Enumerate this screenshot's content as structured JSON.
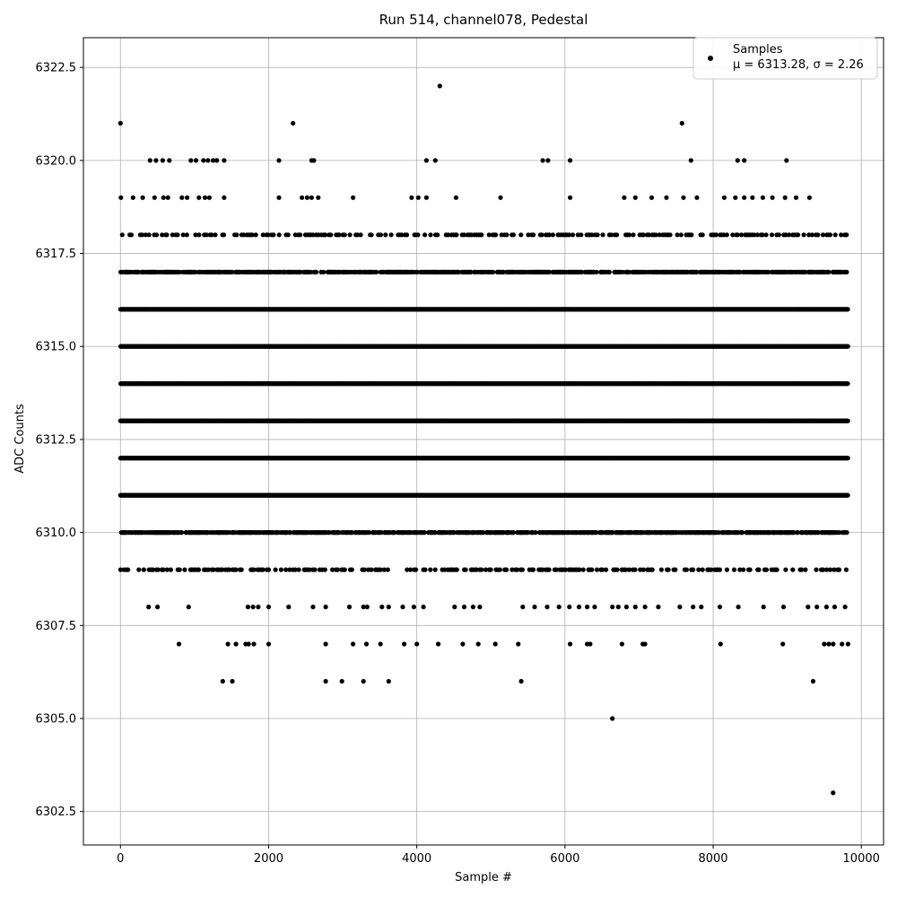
{
  "chart_data": {
    "type": "scatter",
    "title": "Run 514, channel078, Pedestal",
    "xlabel": "Sample #",
    "ylabel": "ADC Counts",
    "xlim": [
      -500,
      10300
    ],
    "ylim": [
      6301.6,
      6323.3
    ],
    "x_ticks": [
      0,
      2000,
      4000,
      6000,
      8000,
      10000
    ],
    "x_tick_labels": [
      "0",
      "2000",
      "4000",
      "6000",
      "8000",
      "10000"
    ],
    "y_ticks": [
      6302.5,
      6305.0,
      6307.5,
      6310.0,
      6312.5,
      6315.0,
      6317.5,
      6320.0,
      6322.5
    ],
    "y_tick_labels": [
      "6302.5",
      "6305.0",
      "6307.5",
      "6310.0",
      "6312.5",
      "6315.0",
      "6317.5",
      "6320.0",
      "6322.5"
    ],
    "grid": true,
    "legend_position": "upper-right",
    "marker_color": "#000000",
    "series": [
      {
        "name": "Samples",
        "legend_stats": "μ = 6313.28, σ = 2.26",
        "sample_range": [
          0,
          9820
        ],
        "dense_levels": [
          6310,
          6311,
          6312,
          6313,
          6314,
          6315,
          6316,
          6317
        ],
        "semi_dense_levels": [
          6309,
          6318
        ],
        "points": [
          [
            0,
            6321
          ],
          [
            2330,
            6321
          ],
          [
            4310,
            6322
          ],
          [
            7580,
            6321
          ],
          [
            6640,
            6305
          ],
          [
            9620,
            6303
          ],
          [
            1380,
            6306
          ],
          [
            1510,
            6306
          ],
          [
            2770,
            6306
          ],
          [
            2990,
            6306
          ],
          [
            3280,
            6306
          ],
          [
            3620,
            6306
          ],
          [
            5410,
            6306
          ],
          [
            9350,
            6306
          ],
          [
            790,
            6307
          ],
          [
            1450,
            6307
          ],
          [
            1560,
            6307
          ],
          [
            1690,
            6307
          ],
          [
            1730,
            6307
          ],
          [
            1800,
            6307
          ],
          [
            2000,
            6307
          ],
          [
            2770,
            6307
          ],
          [
            3140,
            6307
          ],
          [
            3320,
            6307
          ],
          [
            3510,
            6307
          ],
          [
            3830,
            6307
          ],
          [
            4000,
            6307
          ],
          [
            4290,
            6307
          ],
          [
            4620,
            6307
          ],
          [
            4830,
            6307
          ],
          [
            5060,
            6307
          ],
          [
            5370,
            6307
          ],
          [
            6070,
            6307
          ],
          [
            6300,
            6307
          ],
          [
            6340,
            6307
          ],
          [
            6770,
            6307
          ],
          [
            7050,
            6307
          ],
          [
            7080,
            6307
          ],
          [
            8100,
            6307
          ],
          [
            8940,
            6307
          ],
          [
            9500,
            6307
          ],
          [
            9560,
            6307
          ],
          [
            9620,
            6307
          ],
          [
            9740,
            6307
          ],
          [
            9820,
            6307
          ],
          [
            380,
            6308
          ],
          [
            500,
            6308
          ],
          [
            920,
            6308
          ],
          [
            1720,
            6308
          ],
          [
            1790,
            6308
          ],
          [
            1860,
            6308
          ],
          [
            2000,
            6308
          ],
          [
            2270,
            6308
          ],
          [
            2600,
            6308
          ],
          [
            2770,
            6308
          ],
          [
            3090,
            6308
          ],
          [
            3280,
            6308
          ],
          [
            3330,
            6308
          ],
          [
            3530,
            6308
          ],
          [
            3620,
            6308
          ],
          [
            3810,
            6308
          ],
          [
            3960,
            6308
          ],
          [
            4090,
            6308
          ],
          [
            4510,
            6308
          ],
          [
            4640,
            6308
          ],
          [
            4760,
            6308
          ],
          [
            4850,
            6308
          ],
          [
            5430,
            6308
          ],
          [
            5590,
            6308
          ],
          [
            5760,
            6308
          ],
          [
            5920,
            6308
          ],
          [
            6060,
            6308
          ],
          [
            6190,
            6308
          ],
          [
            6300,
            6308
          ],
          [
            6400,
            6308
          ],
          [
            6640,
            6308
          ],
          [
            6720,
            6308
          ],
          [
            6830,
            6308
          ],
          [
            6950,
            6308
          ],
          [
            7080,
            6308
          ],
          [
            7260,
            6308
          ],
          [
            7550,
            6308
          ],
          [
            7730,
            6308
          ],
          [
            7840,
            6308
          ],
          [
            8090,
            6308
          ],
          [
            8340,
            6308
          ],
          [
            8680,
            6308
          ],
          [
            8950,
            6308
          ],
          [
            9280,
            6308
          ],
          [
            9400,
            6308
          ],
          [
            9530,
            6308
          ],
          [
            9640,
            6308
          ],
          [
            9780,
            6308
          ],
          [
            6,
            6319
          ],
          [
            170,
            6319
          ],
          [
            300,
            6319
          ],
          [
            460,
            6319
          ],
          [
            580,
            6319
          ],
          [
            640,
            6319
          ],
          [
            830,
            6319
          ],
          [
            900,
            6319
          ],
          [
            1060,
            6319
          ],
          [
            1140,
            6319
          ],
          [
            1200,
            6319
          ],
          [
            1400,
            6319
          ],
          [
            2140,
            6319
          ],
          [
            2450,
            6319
          ],
          [
            2520,
            6319
          ],
          [
            2580,
            6319
          ],
          [
            2670,
            6319
          ],
          [
            3140,
            6319
          ],
          [
            3930,
            6319
          ],
          [
            4020,
            6319
          ],
          [
            4130,
            6319
          ],
          [
            4530,
            6319
          ],
          [
            5130,
            6319
          ],
          [
            6070,
            6319
          ],
          [
            6800,
            6319
          ],
          [
            6950,
            6319
          ],
          [
            7170,
            6319
          ],
          [
            7370,
            6319
          ],
          [
            7600,
            6319
          ],
          [
            7780,
            6319
          ],
          [
            8150,
            6319
          ],
          [
            8300,
            6319
          ],
          [
            8420,
            6319
          ],
          [
            8530,
            6319
          ],
          [
            8670,
            6319
          ],
          [
            8800,
            6319
          ],
          [
            8970,
            6319
          ],
          [
            9120,
            6319
          ],
          [
            9300,
            6319
          ],
          [
            400,
            6320
          ],
          [
            480,
            6320
          ],
          [
            570,
            6320
          ],
          [
            660,
            6320
          ],
          [
            950,
            6320
          ],
          [
            1020,
            6320
          ],
          [
            1120,
            6320
          ],
          [
            1180,
            6320
          ],
          [
            1250,
            6320
          ],
          [
            1300,
            6320
          ],
          [
            1400,
            6320
          ],
          [
            2140,
            6320
          ],
          [
            2580,
            6320
          ],
          [
            2610,
            6320
          ],
          [
            4130,
            6320
          ],
          [
            4250,
            6320
          ],
          [
            5700,
            6320
          ],
          [
            5770,
            6320
          ],
          [
            6070,
            6320
          ],
          [
            7700,
            6320
          ],
          [
            8330,
            6320
          ],
          [
            8420,
            6320
          ],
          [
            8990,
            6320
          ]
        ]
      }
    ]
  }
}
